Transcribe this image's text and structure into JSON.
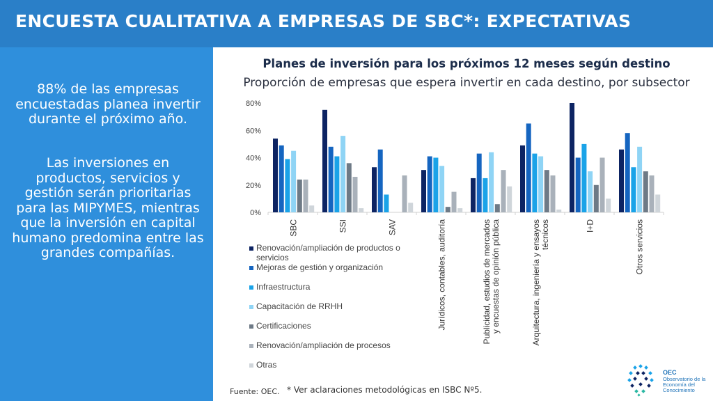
{
  "header": {
    "title": "ENCUESTA CUALITATIVA A EMPRESAS DE SBC*: EXPECTATIVAS"
  },
  "left_panel": {
    "paragraph1": "88% de las empresas encuestadas planea invertir durante el próximo año.",
    "paragraph2": "Las inversiones en productos, servicios y gestión serán prioritarias para las MIPYMES, mientras que la inversión en capital humano predomina entre las grandes compañías."
  },
  "chart_data": {
    "type": "bar",
    "title": "Planes de inversión para los próximos 12 meses según destino",
    "subtitle": "Proporción de empresas que espera invertir en cada destino, por subsector",
    "categories": [
      "SBC",
      "SSI",
      "SAV",
      "Jurídicos, contables, auditoría",
      "Publicidad, estudios de mercados y encuestas de opinión pública",
      "Arquitectura, ingeniería y ensayos técnicos",
      "I+D",
      "Otros servicios"
    ],
    "category_label_lines": [
      [
        "SBC"
      ],
      [
        "SSI"
      ],
      [
        "SAV"
      ],
      [
        "Jurídicos, contables, auditoría"
      ],
      [
        "Publicidad, estudios de mercados",
        "y encuestas de opinión pública"
      ],
      [
        "Arquitectura, ingeniería y ensayos",
        "técnicos"
      ],
      [
        "I+D"
      ],
      [
        "Otros servicios"
      ]
    ],
    "series": [
      {
        "name": "Renovación/ampliación de productos o servicios",
        "legend_lines": [
          "Renovación/ampliación de productos o",
          "servicios"
        ],
        "color": "#0d2463",
        "values": [
          54,
          75,
          33,
          31,
          25,
          49,
          80,
          46
        ]
      },
      {
        "name": "Mejoras de gestión y organización",
        "legend_lines": [
          "Mejoras de gestión y organización"
        ],
        "color": "#1565c0",
        "values": [
          49,
          48,
          46,
          41,
          43,
          65,
          40,
          58
        ]
      },
      {
        "name": "Infraestructura",
        "legend_lines": [
          "Infraestructura"
        ],
        "color": "#1aa3e8",
        "values": [
          39,
          41,
          13,
          40,
          25,
          43,
          50,
          33
        ]
      },
      {
        "name": "Capacitación de RRHH",
        "legend_lines": [
          "Capacitación de RRHH"
        ],
        "color": "#8fd4f5",
        "values": [
          45,
          56,
          0,
          34,
          44,
          41,
          30,
          48
        ]
      },
      {
        "name": "Certificaciones",
        "legend_lines": [
          "Certificaciones"
        ],
        "color": "#6e7a86",
        "values": [
          24,
          36,
          0,
          4,
          6,
          31,
          20,
          30
        ]
      },
      {
        "name": "Renovación/ampliación de procesos",
        "legend_lines": [
          "Renovación/ampliación de procesos"
        ],
        "color": "#a9b1ba",
        "values": [
          24,
          26,
          27,
          15,
          31,
          27,
          40,
          27
        ]
      },
      {
        "name": "Otras",
        "legend_lines": [
          "Otras"
        ],
        "color": "#cfd5da",
        "values": [
          5,
          3,
          7,
          3,
          19,
          2,
          10,
          13
        ]
      }
    ],
    "yticks": [
      "80%",
      "60%",
      "40%",
      "20%",
      "0%"
    ],
    "ytick_values": [
      80,
      60,
      40,
      20,
      0
    ],
    "ylim": [
      0,
      80
    ],
    "xlabel": "",
    "ylabel": "",
    "grid": false,
    "legend_position": "bottom-left"
  },
  "footer": {
    "source": "Fuente: OEC.",
    "note": "* Ver aclaraciones metodológicas en ISBC Nº5."
  },
  "logo": {
    "name": "OEC",
    "caption": "Observatorio de la Economía del Conocimiento"
  }
}
